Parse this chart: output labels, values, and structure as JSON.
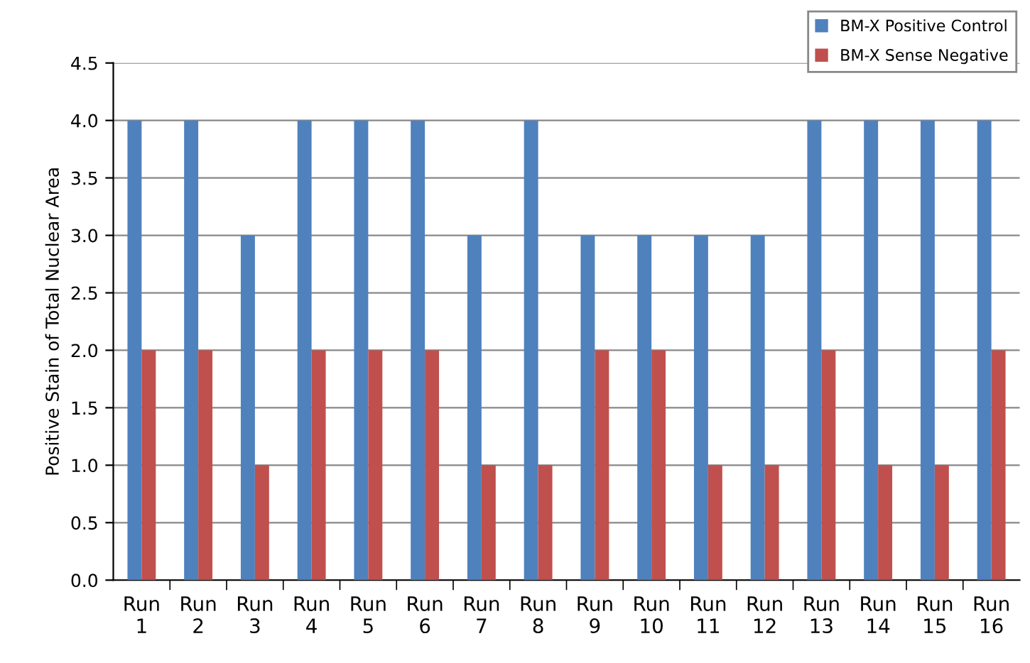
{
  "chart_data": {
    "type": "bar",
    "ylabel": "Positive Stain of Total Nuclear Area",
    "categories": [
      "Run\n1",
      "Run\n2",
      "Run\n3",
      "Run\n4",
      "Run\n5",
      "Run\n6",
      "Run\n7",
      "Run\n8",
      "Run\n9",
      "Run\n10",
      "Run\n11",
      "Run\n12",
      "Run\n13",
      "Run\n14",
      "Run\n15",
      "Run\n16"
    ],
    "series": [
      {
        "name": "BM-X Positive Control",
        "color": "#4f81bd",
        "values": [
          4,
          4,
          3,
          4,
          4,
          4,
          3,
          4,
          3,
          3,
          3,
          3,
          4,
          4,
          4,
          4
        ]
      },
      {
        "name": "BM-X Sense Negative",
        "color": "#c0504d",
        "values": [
          2,
          2,
          1,
          2,
          2,
          2,
          1,
          1,
          2,
          2,
          1,
          1,
          2,
          1,
          1,
          2
        ]
      }
    ],
    "ylim": [
      0,
      4.5
    ],
    "yticks": [
      {
        "value": 0,
        "label": "0.0"
      },
      {
        "value": 0.5,
        "label": "0.5"
      },
      {
        "value": 1,
        "label": "1.0"
      },
      {
        "value": 1.5,
        "label": "1.5"
      },
      {
        "value": 2,
        "label": "2.0"
      },
      {
        "value": 2.5,
        "label": "2.5"
      },
      {
        "value": 3,
        "label": "3.0"
      },
      {
        "value": 3.5,
        "label": "3.5"
      },
      {
        "value": 4,
        "label": "4.0"
      },
      {
        "value": 4.5,
        "label": "4.5"
      }
    ],
    "grid": "y",
    "legend": "top right"
  }
}
